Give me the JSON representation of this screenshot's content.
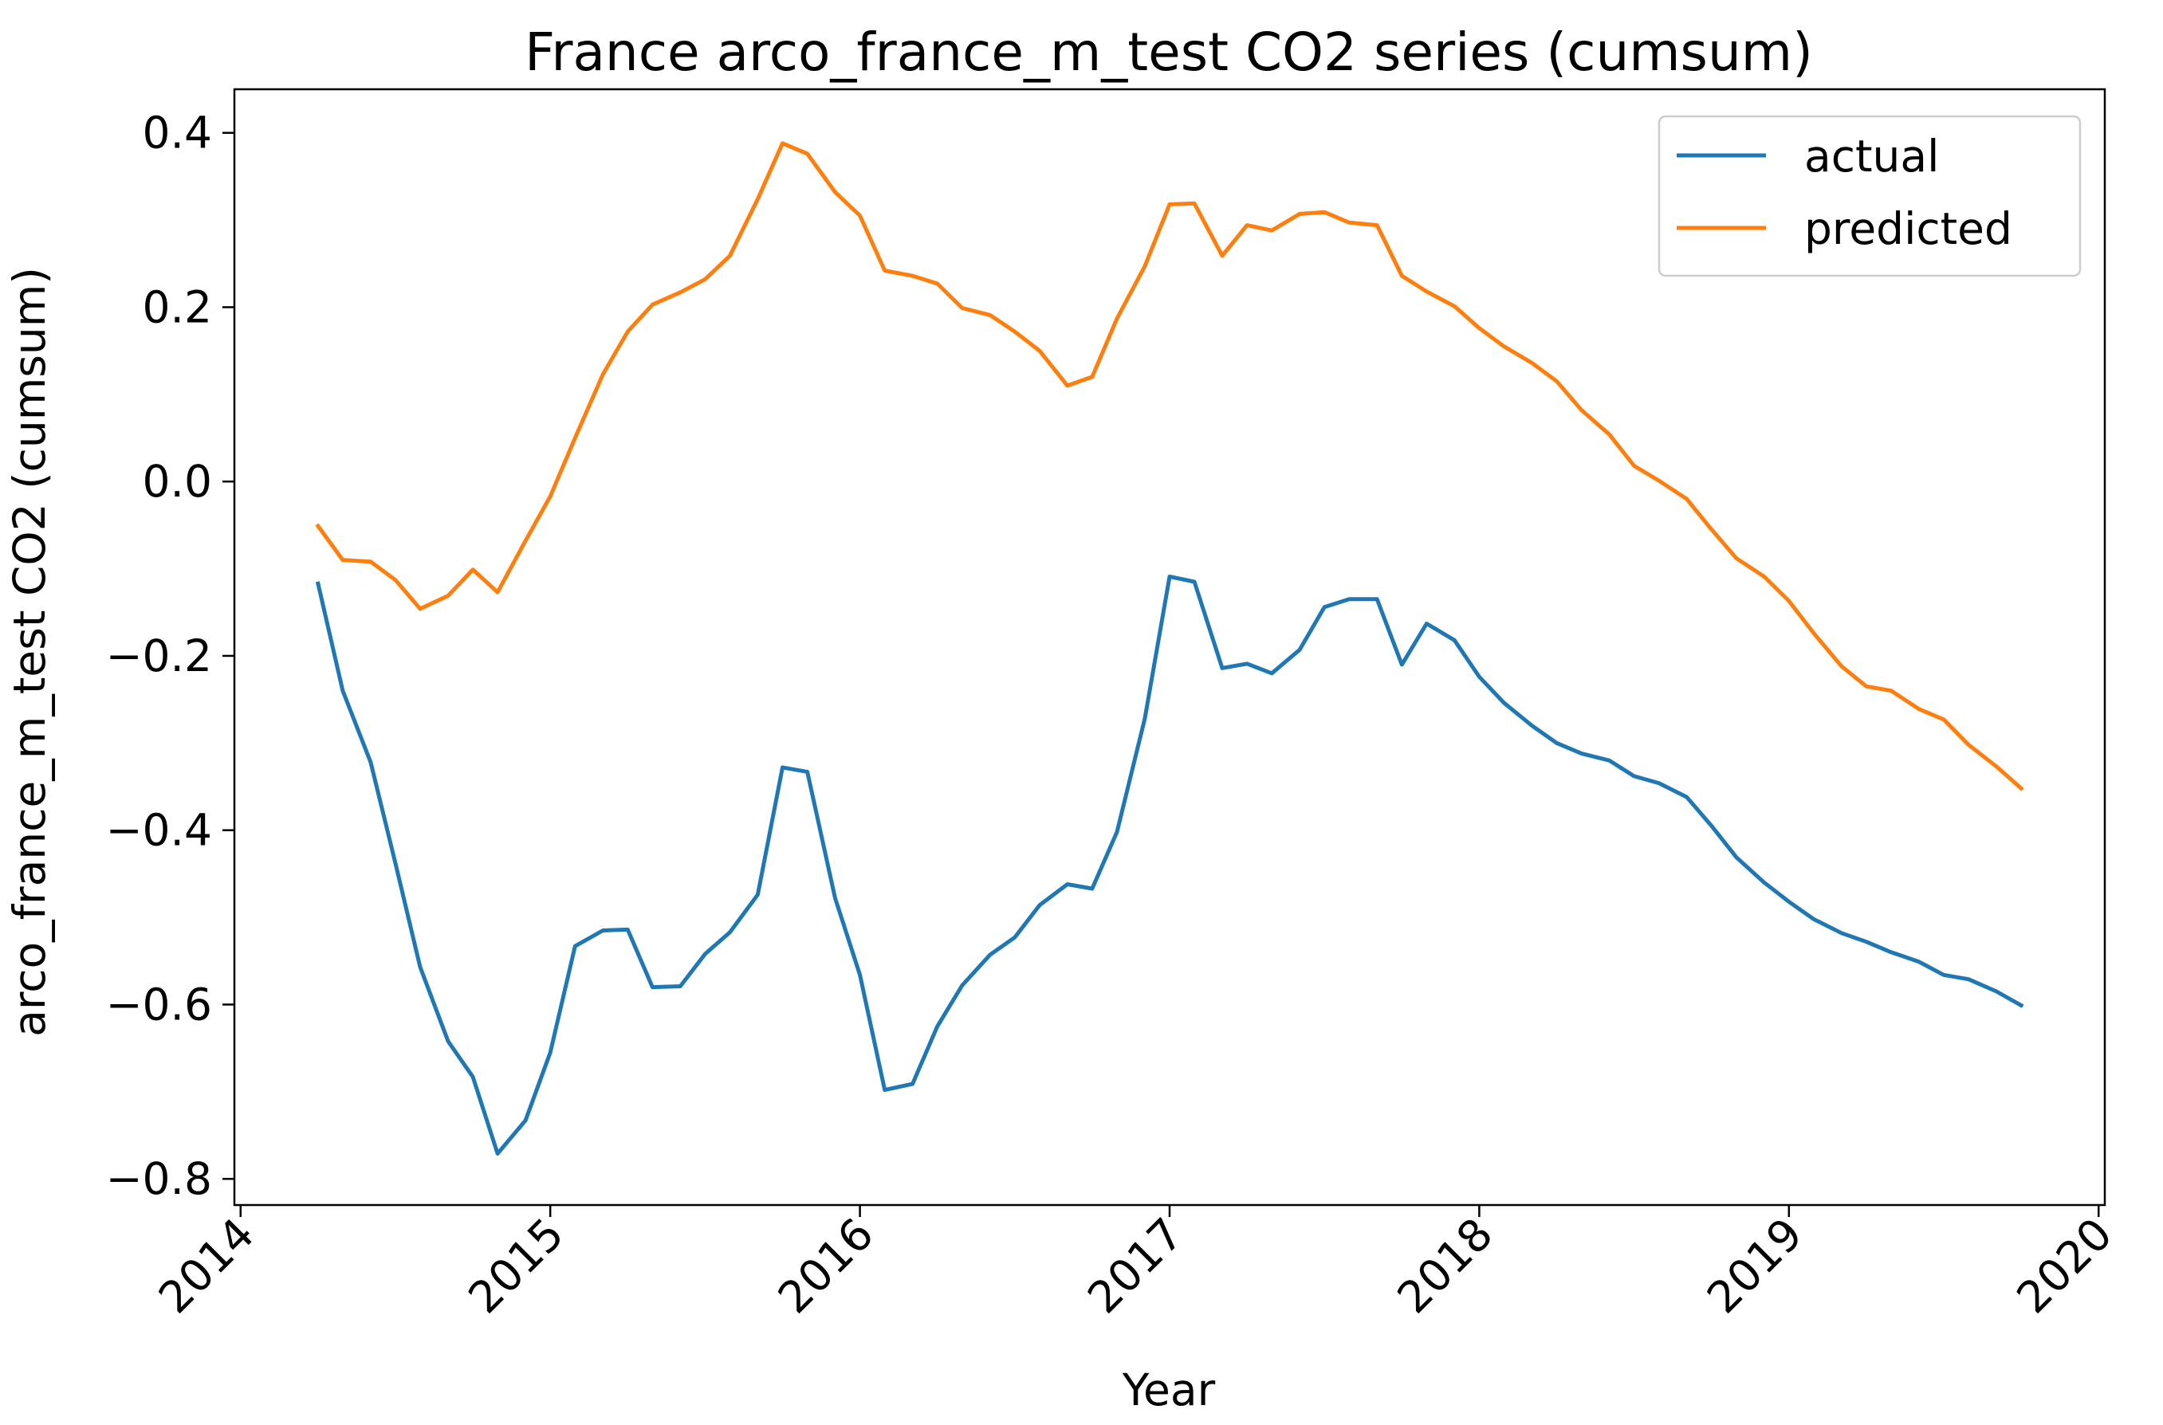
{
  "chart_data": {
    "type": "line",
    "title": "France arco_france_m_test CO2 series (cumsum)",
    "xlabel": "Year",
    "ylabel": "arco_france_m_test CO2 (cumsum)",
    "xlim": [
      2013.98,
      2020.02
    ],
    "ylim": [
      -0.83,
      0.45
    ],
    "x_ticks": [
      2014,
      2015,
      2016,
      2017,
      2018,
      2019,
      2020
    ],
    "x_tick_labels": [
      "2014",
      "2015",
      "2016",
      "2017",
      "2018",
      "2019",
      "2020"
    ],
    "y_ticks": [
      -0.8,
      -0.6,
      -0.4,
      -0.2,
      0.0,
      0.2,
      0.4
    ],
    "y_tick_labels": [
      "−0.8",
      "−0.6",
      "−0.4",
      "−0.2",
      "0.0",
      "0.2",
      "0.4"
    ],
    "legend_position": "top-right",
    "grid": false,
    "x": [
      2014.25,
      2014.33,
      2014.42,
      2014.5,
      2014.58,
      2014.67,
      2014.75,
      2014.83,
      2014.92,
      2015.0,
      2015.08,
      2015.17,
      2015.25,
      2015.33,
      2015.42,
      2015.5,
      2015.58,
      2015.67,
      2015.75,
      2015.83,
      2015.92,
      2016.0,
      2016.08,
      2016.17,
      2016.25,
      2016.33,
      2016.42,
      2016.5,
      2016.58,
      2016.67,
      2016.75,
      2016.83,
      2016.92,
      2017.0,
      2017.08,
      2017.17,
      2017.25,
      2017.33,
      2017.42,
      2017.5,
      2017.58,
      2017.67,
      2017.75,
      2017.83,
      2017.92,
      2018.0,
      2018.08,
      2018.17,
      2018.25,
      2018.33,
      2018.42,
      2018.5,
      2018.58,
      2018.67,
      2018.75,
      2018.83,
      2018.92,
      2019.0,
      2019.08,
      2019.17,
      2019.25,
      2019.33,
      2019.42,
      2019.5,
      2019.58,
      2019.67,
      2019.75
    ],
    "series": [
      {
        "name": "actual",
        "color": "#1f77b4",
        "values": [
          -0.117,
          -0.24,
          -0.322,
          -0.438,
          -0.557,
          -0.642,
          -0.683,
          -0.771,
          -0.733,
          -0.655,
          -0.533,
          -0.515,
          -0.514,
          -0.58,
          -0.579,
          -0.542,
          -0.517,
          -0.474,
          -0.328,
          -0.333,
          -0.478,
          -0.566,
          -0.698,
          -0.691,
          -0.625,
          -0.578,
          -0.543,
          -0.523,
          -0.486,
          -0.462,
          -0.467,
          -0.402,
          -0.272,
          -0.109,
          -0.115,
          -0.214,
          -0.209,
          -0.22,
          -0.193,
          -0.144,
          -0.135,
          -0.135,
          -0.21,
          -0.163,
          -0.182,
          -0.224,
          -0.254,
          -0.28,
          -0.3,
          -0.312,
          -0.32,
          -0.338,
          -0.346,
          -0.362,
          -0.395,
          -0.431,
          -0.46,
          -0.482,
          -0.502,
          -0.518,
          -0.528,
          -0.54,
          -0.551,
          -0.566,
          -0.571,
          -0.585,
          -0.601
        ]
      },
      {
        "name": "predicted",
        "color": "#ff7f0e",
        "values": [
          -0.051,
          -0.09,
          -0.092,
          -0.113,
          -0.146,
          -0.131,
          -0.101,
          -0.127,
          -0.068,
          -0.017,
          0.05,
          0.123,
          0.172,
          0.203,
          0.217,
          0.232,
          0.259,
          0.324,
          0.388,
          0.376,
          0.332,
          0.305,
          0.242,
          0.236,
          0.227,
          0.199,
          0.191,
          0.172,
          0.15,
          0.11,
          0.12,
          0.187,
          0.247,
          0.318,
          0.319,
          0.259,
          0.294,
          0.288,
          0.307,
          0.309,
          0.297,
          0.294,
          0.236,
          0.218,
          0.201,
          0.176,
          0.155,
          0.136,
          0.115,
          0.082,
          0.054,
          0.018,
          0.001,
          -0.02,
          -0.055,
          -0.088,
          -0.109,
          -0.137,
          -0.174,
          -0.212,
          -0.235,
          -0.24,
          -0.261,
          -0.273,
          -0.302,
          -0.327,
          -0.352
        ]
      }
    ]
  }
}
